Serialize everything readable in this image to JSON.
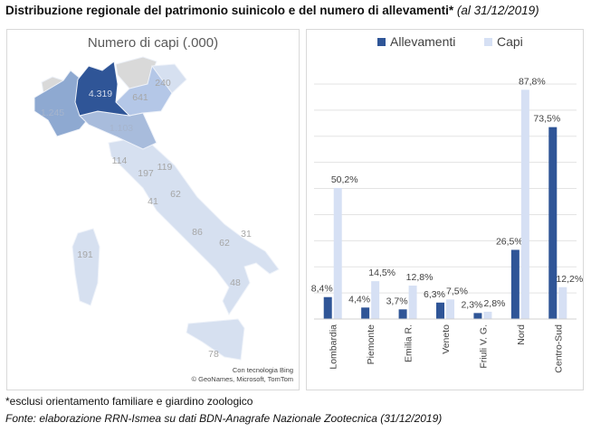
{
  "title": {
    "main": "Distribuzione regionale del patrimonio suinicolo e del numero di allevamenti*",
    "date": "(al 31/12/2019)"
  },
  "map": {
    "title": "Numero di capi (.000)",
    "credit_line1": "Con tecnologia Bing",
    "credit_line2": "© GeoNames, Microsoft, TomTom",
    "labels": {
      "lombardia": "4.319",
      "piemonte": "1.245",
      "emilia": "1.103",
      "veneto": "641",
      "friuli": "240",
      "toscana": "114",
      "umbria": "197",
      "marche": "119",
      "lazio": "41",
      "abruzzo": "62",
      "campania": "86",
      "puglia": "62",
      "molise": "31",
      "calabria": "48",
      "sardegna": "191",
      "sicilia": "78"
    },
    "colors": {
      "max": "#2f5597",
      "mid": "#8ea9d1",
      "low": "#d6e0f0",
      "nodata": "#d9d9d9"
    }
  },
  "chart_data": {
    "type": "bar",
    "categories": [
      "Lombardia",
      "Piemonte",
      "Emilia R.",
      "Veneto",
      "Friuli V. G.",
      "Nord",
      "Centro-Sud"
    ],
    "series": [
      {
        "name": "Allevamenti",
        "color": "#2f5597",
        "values": [
          8.4,
          4.4,
          3.7,
          6.3,
          2.3,
          26.5,
          73.5
        ],
        "labels": [
          "8,4%",
          "4,4%",
          "3,7%",
          "6,3%",
          "2,3%",
          "26,5%",
          "73,5%"
        ]
      },
      {
        "name": "Capi",
        "color": "#d6e0f4",
        "values": [
          50.2,
          14.5,
          12.8,
          7.5,
          2.8,
          87.8,
          12.2
        ],
        "labels": [
          "50,2%",
          "14,5%",
          "12,8%",
          "7,5%",
          "2,8%",
          "87,8%",
          "12,2%"
        ]
      }
    ],
    "ylim": [
      0,
      90
    ],
    "grid": true,
    "legend": "top"
  },
  "footnote": "*esclusi orientamento familiare e giardino zoologico",
  "source": "Fonte: elaborazione RRN-Ismea su dati BDN-Anagrafe Nazionale Zootecnica (31/12/2019)"
}
